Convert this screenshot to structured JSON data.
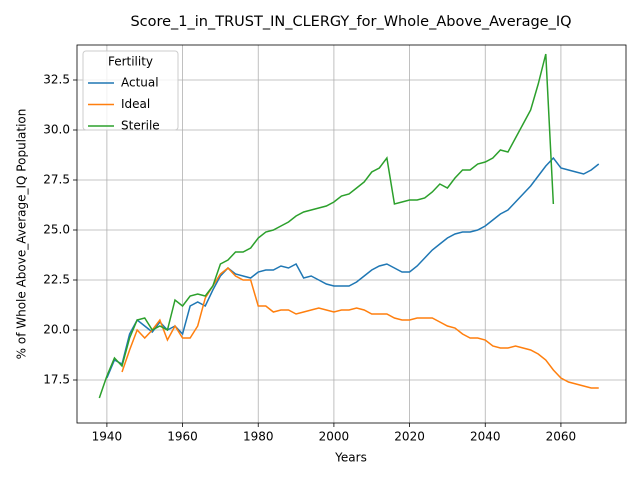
{
  "chart_data": {
    "type": "line",
    "title": "Score_1_in_TRUST_IN_CLERGY_for_Whole_Above_Average_IQ",
    "x_label": "Years",
    "y_label": "% of Whole Above_Average_IQ Population",
    "legend_title": "Fertility",
    "legend_loc": "upper left",
    "grid": true,
    "x": [
      1938,
      1940,
      1942,
      1944,
      1946,
      1948,
      1950,
      1952,
      1954,
      1956,
      1958,
      1960,
      1962,
      1964,
      1966,
      1968,
      1970,
      1972,
      1974,
      1976,
      1978,
      1980,
      1982,
      1984,
      1986,
      1988,
      1990,
      1992,
      1994,
      1996,
      1998,
      2000,
      2002,
      2004,
      2006,
      2008,
      2010,
      2012,
      2014,
      2016,
      2018,
      2020,
      2022,
      2024,
      2026,
      2028,
      2030,
      2032,
      2034,
      2036,
      2038,
      2040,
      2042,
      2044,
      2046,
      2048,
      2050,
      2052,
      2054,
      2056,
      2058,
      2060,
      2062,
      2064,
      2066,
      2068,
      2070
    ],
    "series": [
      {
        "name": "Actual",
        "color": "#1f77b4",
        "values": [
          null,
          17.6,
          18.5,
          18.3,
          19.8,
          20.5,
          20.2,
          19.9,
          20.4,
          20.0,
          20.2,
          19.8,
          21.2,
          21.4,
          21.2,
          22.0,
          22.7,
          23.1,
          22.8,
          22.7,
          22.6,
          22.9,
          23.0,
          23.0,
          23.2,
          23.1,
          23.3,
          22.6,
          22.7,
          22.5,
          22.3,
          22.2,
          22.2,
          22.2,
          22.4,
          22.7,
          23.0,
          23.2,
          23.3,
          23.1,
          22.9,
          22.9,
          23.2,
          23.6,
          24.0,
          24.3,
          24.6,
          24.8,
          24.9,
          24.9,
          25.0,
          25.2,
          25.5,
          25.8,
          26.0,
          26.4,
          26.8,
          27.2,
          27.7,
          28.2,
          28.6,
          28.1,
          28.0,
          27.9,
          27.8,
          28.0,
          28.3
        ]
      },
      {
        "name": "Ideal",
        "color": "#ff7f0e",
        "values": [
          null,
          null,
          null,
          17.9,
          19.0,
          20.0,
          19.6,
          20.0,
          20.5,
          19.5,
          20.2,
          19.6,
          19.6,
          20.2,
          21.6,
          22.2,
          22.8,
          23.1,
          22.7,
          22.5,
          22.5,
          21.2,
          21.2,
          20.9,
          21.0,
          21.0,
          20.8,
          20.9,
          21.0,
          21.1,
          21.0,
          20.9,
          21.0,
          21.0,
          21.1,
          21.0,
          20.8,
          20.8,
          20.8,
          20.6,
          20.5,
          20.5,
          20.6,
          20.6,
          20.6,
          20.4,
          20.2,
          20.1,
          19.8,
          19.6,
          19.6,
          19.5,
          19.2,
          19.1,
          19.1,
          19.2,
          19.1,
          19.0,
          18.8,
          18.5,
          18.0,
          17.6,
          17.4,
          17.3,
          17.2,
          17.1,
          17.1
        ]
      },
      {
        "name": "Sterile",
        "color": "#2ca02c",
        "values": [
          16.6,
          17.7,
          18.6,
          18.2,
          19.6,
          20.5,
          20.6,
          20.0,
          20.2,
          20.0,
          21.5,
          21.2,
          21.7,
          21.8,
          21.7,
          22.2,
          23.3,
          23.5,
          23.9,
          23.9,
          24.1,
          24.6,
          24.9,
          25.0,
          25.2,
          25.4,
          25.7,
          25.9,
          26.0,
          26.1,
          26.2,
          26.4,
          26.7,
          26.8,
          27.1,
          27.4,
          27.9,
          28.1,
          28.6,
          26.3,
          26.4,
          26.5,
          26.5,
          26.6,
          26.9,
          27.3,
          27.1,
          27.6,
          28.0,
          28.0,
          28.3,
          28.4,
          28.6,
          29.0,
          28.9,
          29.6,
          30.3,
          31.0,
          32.3,
          33.8,
          26.3,
          null,
          null,
          null,
          null,
          null,
          null
        ]
      }
    ],
    "xlim": [
      1932.1,
      2077.2
    ],
    "xticks": [
      1940,
      1960,
      1980,
      2000,
      2020,
      2040,
      2060
    ],
    "ylim": [
      15.35,
      34.25
    ],
    "yticks": [
      17.5,
      {
        "value": 20,
        "label": "20.0"
      },
      22.5,
      {
        "value": 25,
        "label": "25.0"
      },
      27.5,
      {
        "value": 30,
        "label": "30.0"
      },
      32.5
    ]
  }
}
